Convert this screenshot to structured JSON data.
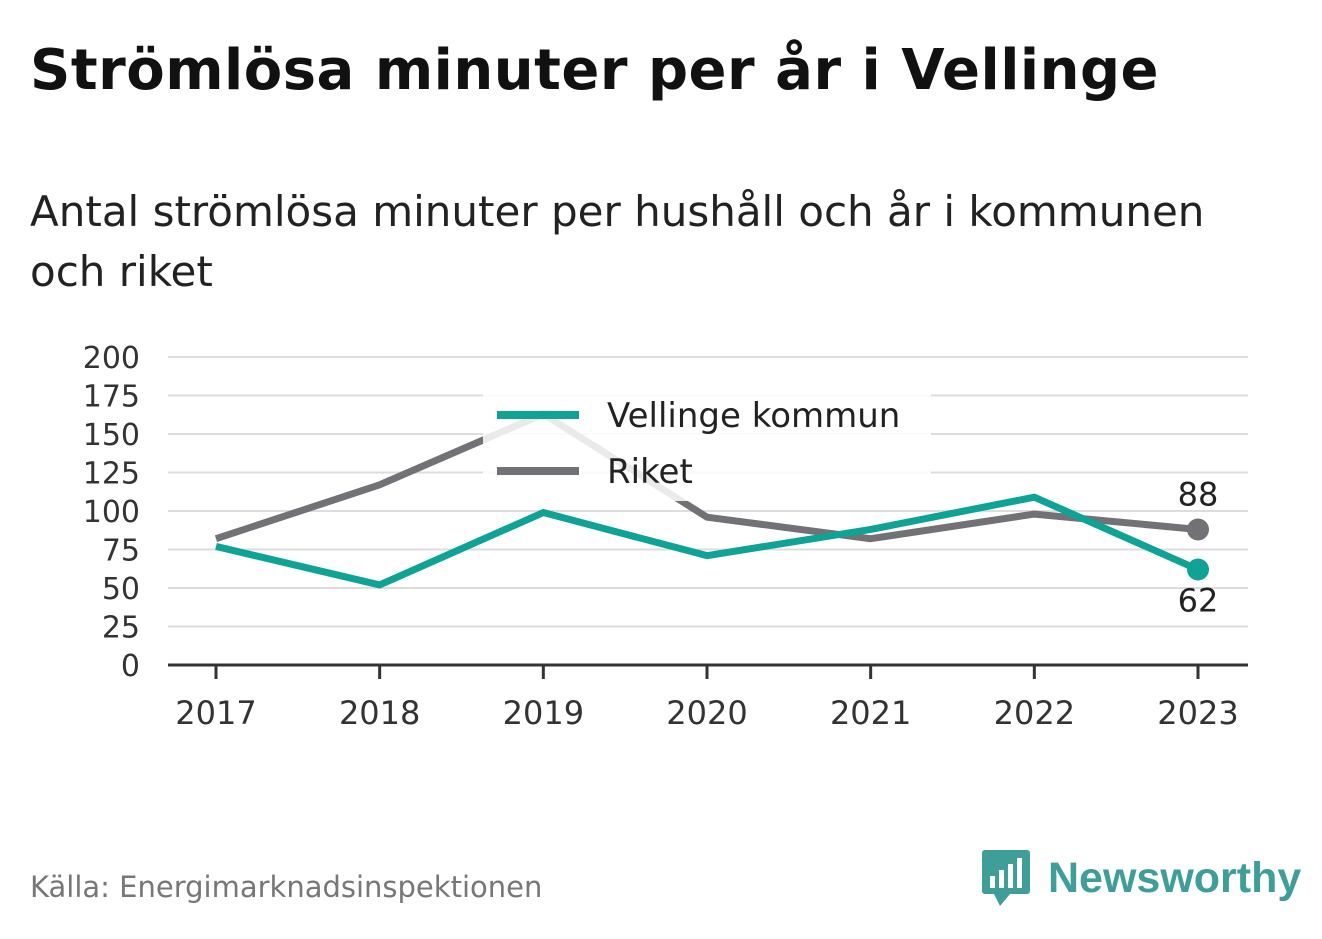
{
  "title": "Strömlösa minuter per år i Vellinge",
  "subtitle": "Antal strömlösa minuter per hushåll och år i kommunen och riket",
  "source": "Källa: Energimarknadsinspektionen",
  "brand": "Newsworthy",
  "colors": {
    "vellinge": "#0fa395",
    "riket": "#727176",
    "brand": "#3f9f98",
    "grid": "#dddddd",
    "axis": "#333333"
  },
  "chart_data": {
    "type": "line",
    "x": [
      "2017",
      "2018",
      "2019",
      "2020",
      "2021",
      "2022",
      "2023"
    ],
    "ylim": [
      0,
      200
    ],
    "yticks": [
      0,
      25,
      50,
      75,
      100,
      125,
      150,
      175,
      200
    ],
    "grid": true,
    "legend_position": "top-center",
    "series": [
      {
        "name": "Vellinge kommun",
        "values": [
          77,
          52,
          99,
          71,
          88,
          109,
          62
        ],
        "end_label": "62"
      },
      {
        "name": "Riket",
        "values": [
          82,
          117,
          163,
          96,
          82,
          98,
          88
        ],
        "end_label": "88"
      }
    ]
  }
}
